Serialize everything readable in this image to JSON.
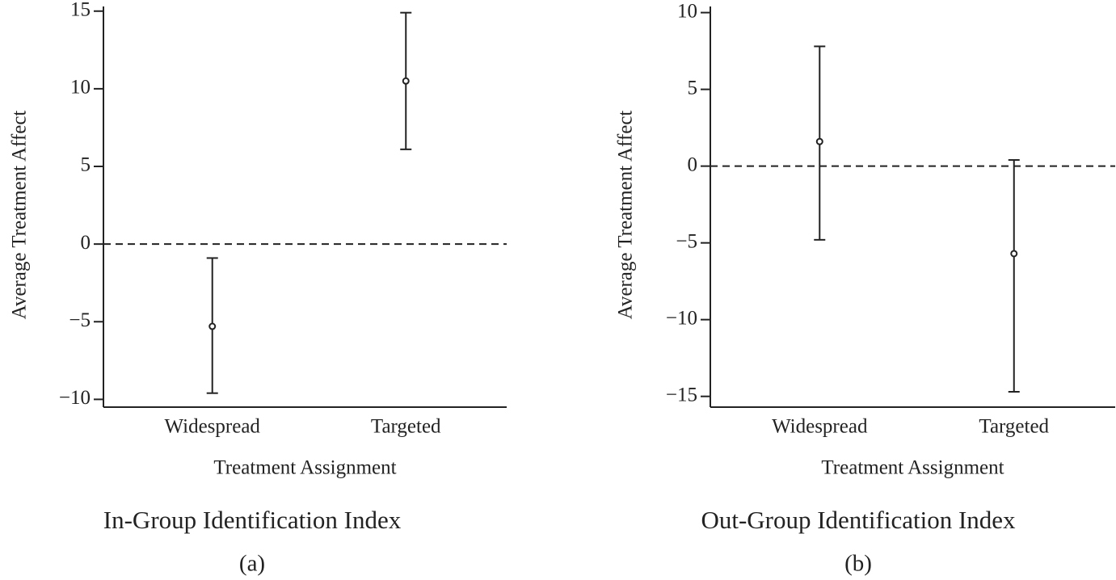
{
  "chart_data": [
    {
      "type": "errorbar",
      "title": "In-Group Identification Index",
      "subtitle": "(a)",
      "x_label": "Treatment Assignment",
      "y_label": "Average Treatment Affect",
      "categories": [
        "Widespread",
        "Targeted"
      ],
      "values": [
        -5.3,
        10.5
      ],
      "lower": [
        -9.6,
        6.1
      ],
      "upper": [
        -0.9,
        14.9
      ],
      "color": "#222222",
      "reference_line": 0,
      "ylim": [
        -10.5,
        15.3
      ],
      "yticks": [
        {
          "value": -10,
          "label": "−10"
        },
        {
          "value": -5,
          "label": "−5"
        },
        0,
        5,
        10,
        15
      ]
    },
    {
      "type": "errorbar",
      "title": "Out-Group Identification Index",
      "subtitle": "(b)",
      "x_label": "Treatment Assignment",
      "y_label": "Average Treatment Affect",
      "categories": [
        "Widespread",
        "Targeted"
      ],
      "values": [
        1.6,
        -5.7
      ],
      "lower": [
        -4.8,
        -14.7
      ],
      "upper": [
        7.8,
        0.4
      ],
      "color": "#222222",
      "reference_line": 0,
      "ylim": [
        -15.7,
        10.4
      ],
      "yticks": [
        {
          "value": -15,
          "label": "−15"
        },
        {
          "value": -10,
          "label": "−10"
        },
        {
          "value": -5,
          "label": "−5"
        },
        0,
        5,
        10
      ]
    }
  ]
}
